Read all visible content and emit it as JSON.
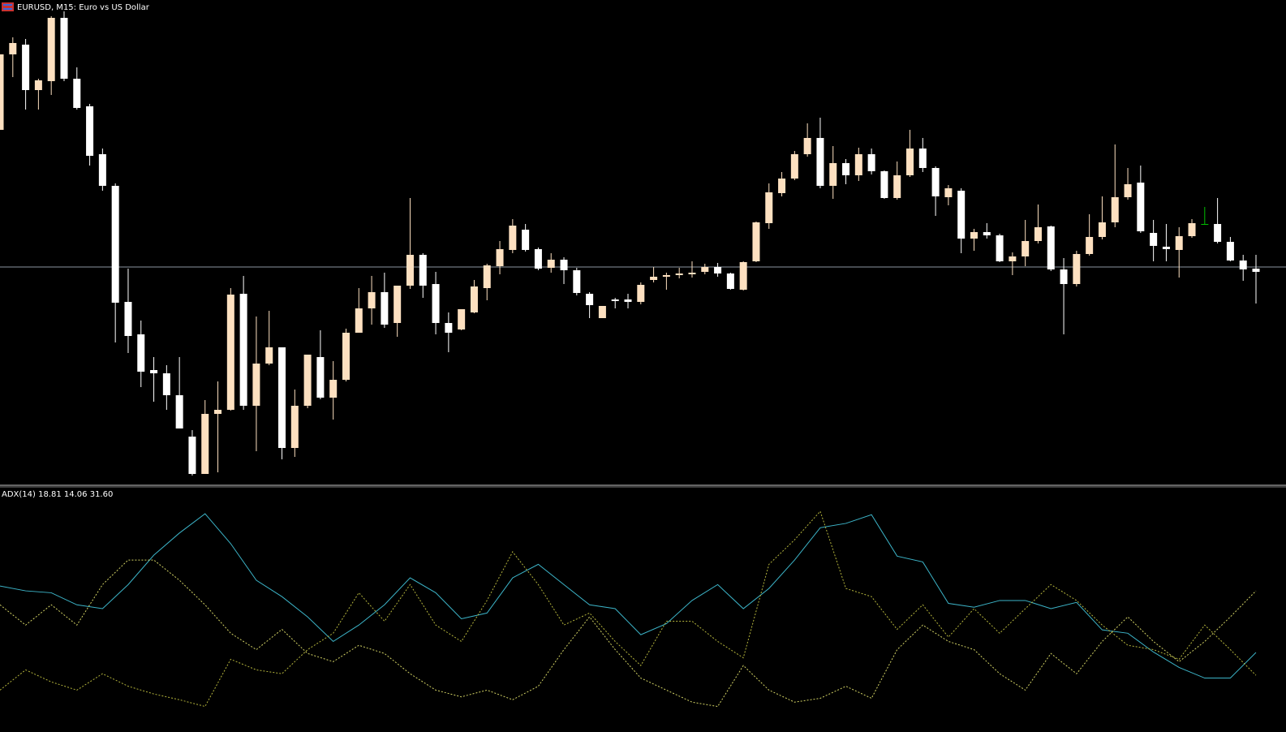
{
  "chart_data": [
    {
      "type": "candlestick",
      "title": "EURUSD, M15:  Euro vs US Dollar",
      "ylim": [
        0,
        600
      ],
      "up_color": "#fde0c0",
      "down_color": "#ffffff",
      "doji_color": "#00c000",
      "price_line": {
        "value": 271,
        "color": "#8c96a0"
      },
      "open": [
        440,
        533,
        545,
        489,
        500,
        578,
        503,
        469,
        410,
        371,
        228,
        188,
        144,
        140,
        113,
        62,
        16,
        90,
        95,
        238,
        100,
        152,
        172,
        48,
        100,
        160,
        110,
        132,
        190,
        220,
        240,
        202,
        248,
        286,
        250,
        202,
        194,
        215,
        245,
        272,
        292,
        317,
        293,
        270,
        280,
        267,
        238,
        208,
        231,
        231,
        228,
        255,
        259,
        261,
        262,
        265,
        271,
        263,
        243,
        278,
        325,
        362,
        380,
        410,
        430,
        371,
        399,
        384,
        410,
        389,
        356,
        384,
        417,
        393,
        357,
        365,
        306,
        314,
        310,
        278,
        284,
        303,
        321,
        268,
        250,
        287,
        308,
        326,
        357,
        375,
        313,
        296,
        292,
        309,
        324,
        324,
        302,
        279,
        269
      ],
      "high": [
        533,
        554,
        552,
        503,
        580,
        586,
        517,
        472,
        417,
        374,
        269,
        205,
        160,
        150,
        160,
        70,
        107,
        130,
        245,
        260,
        210,
        217,
        172,
        120,
        163,
        193,
        155,
        195,
        245,
        260,
        264,
        248,
        356,
        288,
        265,
        215,
        219,
        255,
        275,
        303,
        330,
        324,
        295,
        288,
        283,
        270,
        240,
        223,
        233,
        238,
        252,
        271,
        264,
        270,
        278,
        275,
        276,
        264,
        278,
        327,
        374,
        388,
        414,
        448,
        455,
        420,
        404,
        418,
        417,
        390,
        401,
        440,
        430,
        395,
        372,
        368,
        318,
        325,
        312,
        289,
        329,
        348,
        322,
        282,
        291,
        336,
        358,
        422,
        393,
        396,
        329,
        324,
        320,
        330,
        345,
        356,
        308,
        286,
        286
      ],
      "low": [
        440,
        505,
        465,
        465,
        483,
        500,
        465,
        396,
        365,
        178,
        165,
        123,
        105,
        95,
        72,
        14,
        16,
        18,
        94,
        95,
        44,
        150,
        34,
        37,
        97,
        108,
        83,
        130,
        190,
        200,
        196,
        185,
        244,
        233,
        188,
        166,
        193,
        214,
        230,
        262,
        288,
        290,
        267,
        264,
        250,
        236,
        208,
        208,
        220,
        220,
        225,
        252,
        243,
        257,
        258,
        262,
        259,
        243,
        242,
        277,
        318,
        358,
        378,
        407,
        368,
        355,
        373,
        377,
        385,
        355,
        354,
        382,
        388,
        334,
        347,
        288,
        291,
        306,
        277,
        261,
        272,
        300,
        266,
        188,
        247,
        285,
        305,
        320,
        354,
        313,
        278,
        278,
        258,
        307,
        323,
        300,
        278,
        254,
        226
      ],
      "close": [
        533,
        547,
        489,
        501,
        578,
        503,
        467,
        408,
        371,
        227,
        186,
        142,
        140,
        113,
        72,
        16,
        90,
        95,
        237,
        100,
        152,
        172,
        48,
        100,
        163,
        110,
        132,
        190,
        220,
        240,
        200,
        248,
        286,
        248,
        202,
        190,
        219,
        247,
        273,
        293,
        322,
        292,
        269,
        280,
        267,
        239,
        224,
        223,
        229,
        228,
        249,
        259,
        261,
        263,
        264,
        271,
        263,
        244,
        277,
        326,
        363,
        380,
        410,
        430,
        371,
        399,
        384,
        410,
        389,
        356,
        384,
        417,
        393,
        358,
        368,
        306,
        314,
        310,
        278,
        284,
        303,
        320,
        268,
        250,
        287,
        308,
        326,
        357,
        373,
        315,
        297,
        293,
        309,
        325,
        324,
        302,
        279,
        268,
        265
      ]
    },
    {
      "type": "line",
      "title": "ADX(14) 18.81 14.06 31.60",
      "ylim": [
        5,
        53
      ],
      "series": [
        {
          "color": "#3cb4c8",
          "style": "solid",
          "values": [
            32.6,
            31.6,
            31.2,
            28.7,
            27.9,
            32.9,
            39.0,
            43.6,
            47.6,
            41.4,
            33.8,
            30.4,
            26.2,
            21.1,
            24.5,
            28.7,
            34.3,
            31.2,
            25.8,
            27.0,
            34.3,
            37.1,
            32.9,
            28.7,
            27.9,
            22.5,
            24.8,
            29.6,
            32.9,
            27.9,
            32.1,
            38.0,
            44.7,
            45.6,
            47.4,
            38.8,
            37.6,
            29.0,
            28.2,
            29.6,
            29.6,
            27.9,
            29.2,
            23.5,
            22.8,
            18.9,
            15.7,
            13.5,
            13.5,
            18.81
          ]
        },
        {
          "color": "#b4b43c",
          "style": "dotted",
          "values": [
            11.0,
            15.2,
            12.7,
            11.0,
            14.4,
            11.8,
            10.2,
            9.0,
            7.6,
            17.4,
            15.2,
            14.4,
            19.4,
            22.8,
            31.2,
            25.3,
            32.9,
            24.5,
            21.1,
            29.6,
            39.7,
            32.9,
            24.5,
            27.0,
            21.1,
            16.1,
            25.3,
            25.3,
            21.1,
            17.7,
            37.1,
            42.2,
            48.1,
            32.1,
            30.4,
            23.6,
            28.7,
            22.0,
            27.9,
            22.8,
            27.9,
            32.9,
            29.6,
            24.5,
            20.3,
            19.4,
            17.4,
            24.5,
            19.4,
            14.06
          ]
        },
        {
          "color": "#d2d264",
          "style": "dotted",
          "values": [
            28.7,
            24.5,
            28.7,
            24.5,
            32.9,
            38.0,
            38.0,
            33.8,
            28.7,
            22.8,
            19.4,
            23.6,
            18.6,
            16.9,
            20.3,
            18.6,
            14.4,
            11.0,
            9.6,
            11.0,
            9.0,
            11.8,
            19.4,
            26.2,
            19.4,
            13.5,
            11.0,
            8.5,
            7.6,
            16.1,
            11.0,
            8.5,
            9.3,
            11.8,
            9.3,
            19.4,
            24.5,
            21.1,
            19.4,
            14.4,
            11.0,
            18.6,
            14.4,
            21.1,
            26.2,
            21.1,
            16.9,
            21.1,
            26.2,
            31.6
          ]
        }
      ]
    }
  ]
}
